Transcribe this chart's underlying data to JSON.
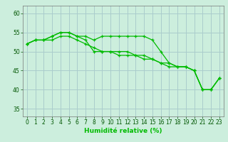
{
  "xlabel": "Humidité relative (%)",
  "background_color": "#cceedd",
  "grid_color": "#aacccc",
  "line_color": "#00bb00",
  "xlim": [
    -0.5,
    23.5
  ],
  "ylim": [
    33,
    62
  ],
  "yticks": [
    35,
    40,
    45,
    50,
    55,
    60
  ],
  "xticks": [
    0,
    1,
    2,
    3,
    4,
    5,
    6,
    7,
    8,
    9,
    10,
    11,
    12,
    13,
    14,
    15,
    16,
    17,
    18,
    19,
    20,
    21,
    22,
    23
  ],
  "series": [
    [
      52,
      53,
      53,
      54,
      55,
      55,
      54,
      54,
      53,
      54,
      54,
      54,
      54,
      54,
      54,
      53,
      50,
      47,
      46,
      46,
      45,
      40,
      40,
      43
    ],
    [
      52,
      53,
      53,
      54,
      55,
      55,
      54,
      53,
      50,
      50,
      50,
      50,
      50,
      49,
      49,
      48,
      47,
      46,
      46,
      46,
      45,
      40,
      40,
      43
    ],
    [
      52,
      53,
      53,
      53,
      54,
      54,
      53,
      52,
      51,
      50,
      50,
      49,
      49,
      49,
      48,
      48,
      47,
      47,
      46,
      46,
      45,
      40,
      40,
      43
    ]
  ]
}
